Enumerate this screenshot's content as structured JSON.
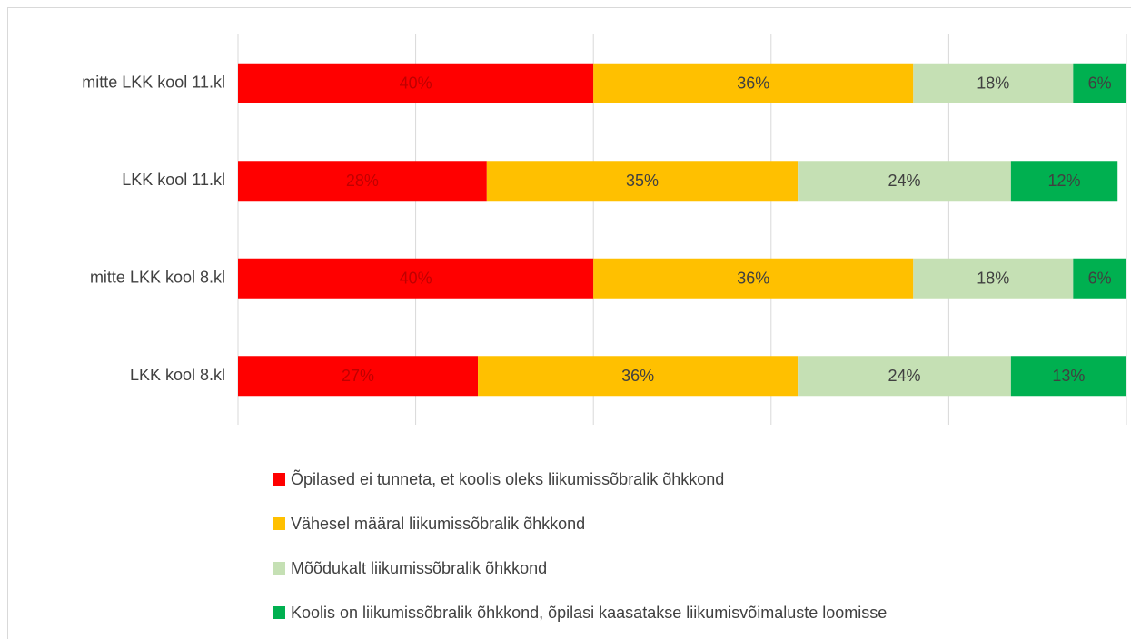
{
  "chart_data": {
    "type": "stacked-barh",
    "categories": [
      "mitte LKK kool 11.kl",
      "LKK kool 11.kl",
      "mitte LKK kool 8.kl",
      "LKK kool 8.kl"
    ],
    "series": [
      {
        "name": "Õpilased ei tunneta, et koolis oleks liikumissõbralik õhkkond",
        "color": "#ff0000",
        "values": [
          40,
          28,
          40,
          27
        ],
        "value_labels": [
          "40%",
          "28%",
          "40%",
          "27%"
        ]
      },
      {
        "name": "Vähesel määral liikumissõbralik õhkkond",
        "color": "#ffc000",
        "values": [
          36,
          35,
          36,
          36
        ],
        "value_labels": [
          "36%",
          "35%",
          "36%",
          "36%"
        ]
      },
      {
        "name": "Mõõdukalt liikumissõbralik õhkkond",
        "color": "#c5e0b4",
        "values": [
          18,
          24,
          18,
          24
        ],
        "value_labels": [
          "18%",
          "24%",
          "18%",
          "24%"
        ]
      },
      {
        "name": "Koolis on liikumissõbralik õhkkond, õpilasi kaasatakse liikumisvõimaluste loomisse",
        "color": "#00b050",
        "values": [
          6,
          12,
          6,
          13
        ],
        "value_labels": [
          "6%",
          "12%",
          "6%",
          "13%"
        ]
      }
    ],
    "xlim": [
      0,
      100
    ],
    "xticks": [
      0,
      20,
      40,
      60,
      80,
      100
    ],
    "grid": true,
    "legend": "bottom"
  }
}
